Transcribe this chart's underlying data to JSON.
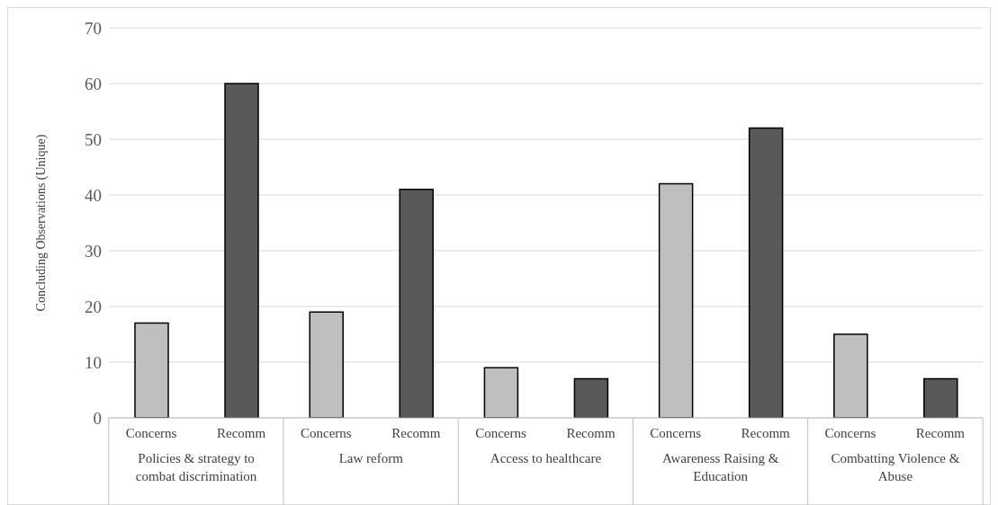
{
  "chart_data": {
    "type": "bar",
    "ylabel": "Concluding Observations (Unique)",
    "categories": [
      "Policies & strategy to combat discrimination",
      "Law reform",
      "Access to healthcare",
      "Awareness Raising & Education",
      "Combatting Violence & Abuse"
    ],
    "series": [
      {
        "name": "Concerns",
        "color": "#bfbfbf",
        "values": [
          17,
          19,
          9,
          42,
          15
        ]
      },
      {
        "name": "Recomm",
        "color": "#595959",
        "values": [
          60,
          41,
          7,
          52,
          7
        ]
      }
    ],
    "ylim": [
      0,
      70
    ],
    "yticks": [
      0,
      10,
      20,
      30,
      40,
      50,
      60,
      70
    ],
    "grid": "y",
    "legend": false
  }
}
